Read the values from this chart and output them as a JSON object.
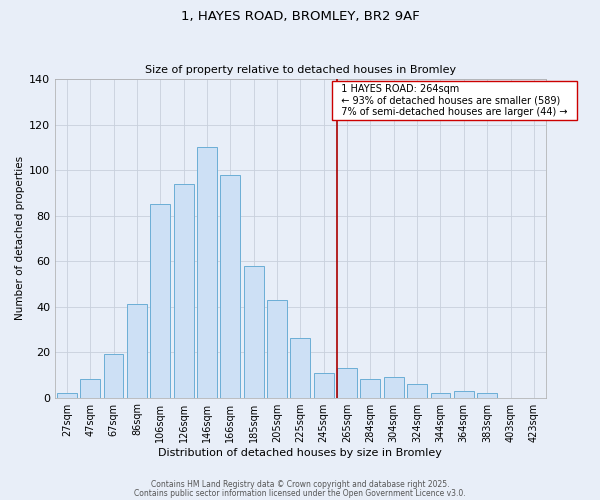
{
  "title_line1": "1, HAYES ROAD, BROMLEY, BR2 9AF",
  "title_line2": "Size of property relative to detached houses in Bromley",
  "xlabel": "Distribution of detached houses by size in Bromley",
  "ylabel": "Number of detached properties",
  "bar_labels": [
    "27sqm",
    "47sqm",
    "67sqm",
    "86sqm",
    "106sqm",
    "126sqm",
    "146sqm",
    "166sqm",
    "185sqm",
    "205sqm",
    "225sqm",
    "245sqm",
    "265sqm",
    "284sqm",
    "304sqm",
    "324sqm",
    "344sqm",
    "364sqm",
    "383sqm",
    "403sqm",
    "423sqm"
  ],
  "bar_heights": [
    2,
    8,
    19,
    41,
    85,
    94,
    110,
    98,
    58,
    43,
    26,
    11,
    13,
    8,
    9,
    6,
    2,
    3,
    2,
    0,
    0
  ],
  "bar_color": "#cde0f5",
  "bar_edge_color": "#6baed6",
  "red_line_index": 12,
  "red_line_color": "#aa0000",
  "annotation_title": "1 HAYES ROAD: 264sqm",
  "annotation_line1": "← 93% of detached houses are smaller (589)",
  "annotation_line2": "7% of semi-detached houses are larger (44) →",
  "annotation_box_facecolor": "#ffffff",
  "annotation_box_edgecolor": "#cc0000",
  "grid_color": "#c8d0dc",
  "background_color": "#e8eef8",
  "footer_line1": "Contains HM Land Registry data © Crown copyright and database right 2025.",
  "footer_line2": "Contains public sector information licensed under the Open Government Licence v3.0.",
  "ylim": [
    0,
    140
  ],
  "yticks": [
    0,
    20,
    40,
    60,
    80,
    100,
    120,
    140
  ]
}
